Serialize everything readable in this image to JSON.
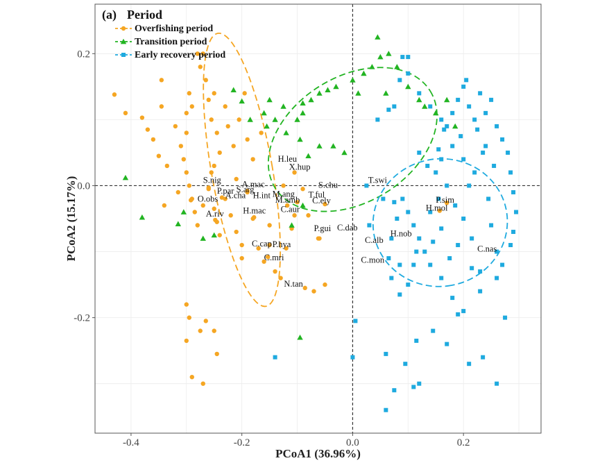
{
  "chart_data": {
    "type": "scatter",
    "panel_tag": "(a)",
    "title": "",
    "xlabel": "PCoA1 (36.96%)",
    "ylabel": "PCoA2 (15.17%)",
    "xlim": [
      -0.465,
      0.34
    ],
    "ylim": [
      -0.375,
      0.275
    ],
    "xticks": [
      -0.4,
      -0.2,
      0.0,
      0.2
    ],
    "xtick_labels": [
      "-0.4",
      "-0.2",
      "0.0",
      "0.2"
    ],
    "yticks": [
      -0.2,
      0.0,
      0.2
    ],
    "ytick_labels": [
      "-0.2",
      "0.0",
      "0.2"
    ],
    "grid": true,
    "zero_lines": true,
    "legend": {
      "title": "Period",
      "position": "top-left",
      "entries": [
        "Overfishing period",
        "Transition  period",
        "Early recovery period"
      ]
    },
    "series": [
      {
        "name": "Overfishing period",
        "marker": "circle",
        "color": "#F5A623",
        "ellipse": {
          "cx": -0.2,
          "cy": 0.024,
          "rx": 0.11,
          "ry": 0.21,
          "angle": 10
        },
        "points": [
          [
            -0.43,
            0.138
          ],
          [
            -0.41,
            0.11
          ],
          [
            -0.38,
            0.103
          ],
          [
            -0.37,
            0.085
          ],
          [
            -0.345,
            0.16
          ],
          [
            -0.345,
            0.12
          ],
          [
            -0.335,
            0.03
          ],
          [
            -0.32,
            0.09
          ],
          [
            -0.3,
            0.11
          ],
          [
            -0.3,
            0.08
          ],
          [
            -0.295,
            0.14
          ],
          [
            -0.29,
            0.12
          ],
          [
            -0.28,
            0.2
          ],
          [
            -0.275,
            0.18
          ],
          [
            -0.27,
            0.2
          ],
          [
            -0.265,
            0.16
          ],
          [
            -0.26,
            0.13
          ],
          [
            -0.255,
            0.1
          ],
          [
            -0.25,
            0.14
          ],
          [
            -0.25,
            0.03
          ],
          [
            -0.245,
            0.08
          ],
          [
            -0.24,
            0.05
          ],
          [
            -0.23,
            0.12
          ],
          [
            -0.225,
            0.09
          ],
          [
            -0.215,
            0.06
          ],
          [
            -0.205,
            0.1
          ],
          [
            -0.195,
            0.14
          ],
          [
            -0.19,
            0.07
          ],
          [
            -0.18,
            0.04
          ],
          [
            -0.165,
            0.08
          ],
          [
            -0.31,
            0.06
          ],
          [
            -0.305,
            0.04
          ],
          [
            -0.3,
            0.02
          ],
          [
            -0.295,
            0.0
          ],
          [
            -0.29,
            -0.02
          ],
          [
            -0.285,
            -0.04
          ],
          [
            -0.28,
            -0.06
          ],
          [
            -0.27,
            -0.03
          ],
          [
            -0.26,
            -0.005
          ],
          [
            -0.255,
            0.02
          ],
          [
            -0.25,
            -0.035
          ],
          [
            -0.245,
            -0.055
          ],
          [
            -0.24,
            -0.075
          ],
          [
            -0.23,
            -0.02
          ],
          [
            -0.22,
            -0.045
          ],
          [
            -0.21,
            -0.07
          ],
          [
            -0.2,
            -0.09
          ],
          [
            -0.19,
            -0.01
          ],
          [
            -0.18,
            -0.05
          ],
          [
            -0.17,
            -0.095
          ],
          [
            -0.16,
            -0.115
          ],
          [
            -0.15,
            -0.09
          ],
          [
            -0.14,
            -0.13
          ],
          [
            -0.13,
            -0.14
          ],
          [
            -0.12,
            -0.095
          ],
          [
            -0.11,
            -0.065
          ],
          [
            -0.1,
            -0.025
          ],
          [
            -0.09,
            -0.005
          ],
          [
            -0.08,
            -0.045
          ],
          [
            -0.07,
            -0.16
          ],
          [
            -0.06,
            -0.08
          ],
          [
            -0.05,
            -0.15
          ],
          [
            -0.3,
            -0.18
          ],
          [
            -0.295,
            -0.2
          ],
          [
            -0.3,
            -0.235
          ],
          [
            -0.275,
            -0.22
          ],
          [
            -0.265,
            -0.205
          ],
          [
            -0.25,
            -0.22
          ],
          [
            -0.29,
            -0.29
          ],
          [
            -0.245,
            -0.255
          ],
          [
            -0.27,
            -0.3
          ],
          [
            -0.35,
            0.045
          ],
          [
            -0.36,
            0.07
          ],
          [
            -0.2,
            -0.11
          ],
          [
            -0.15,
            -0.06
          ],
          [
            -0.34,
            -0.03
          ],
          [
            -0.315,
            -0.01
          ],
          [
            -0.21,
            0.01
          ],
          [
            -0.125,
            0.0
          ],
          [
            -0.105,
            0.02
          ]
        ]
      },
      {
        "name": "Transition  period",
        "marker": "triangle",
        "color": "#22B422",
        "ellipse": {
          "cx": 0.0,
          "cy": 0.07,
          "rx": 0.33,
          "ry": 0.095,
          "angle": 32
        },
        "points": [
          [
            -0.41,
            0.012
          ],
          [
            -0.38,
            -0.048
          ],
          [
            -0.315,
            -0.058
          ],
          [
            -0.305,
            -0.04
          ],
          [
            -0.27,
            -0.08
          ],
          [
            -0.25,
            -0.075
          ],
          [
            -0.215,
            0.145
          ],
          [
            -0.2,
            0.128
          ],
          [
            -0.185,
            0.1
          ],
          [
            -0.16,
            0.11
          ],
          [
            -0.155,
            0.09
          ],
          [
            -0.15,
            0.13
          ],
          [
            -0.14,
            0.1
          ],
          [
            -0.125,
            0.12
          ],
          [
            -0.12,
            0.08
          ],
          [
            -0.1,
            0.1
          ],
          [
            -0.095,
            0.07
          ],
          [
            -0.09,
            0.11
          ],
          [
            -0.09,
            0.125
          ],
          [
            -0.075,
            0.13
          ],
          [
            -0.06,
            0.14
          ],
          [
            -0.045,
            0.145
          ],
          [
            -0.035,
            0.06
          ],
          [
            -0.03,
            0.15
          ],
          [
            -0.015,
            0.05
          ],
          [
            0.0,
            0.16
          ],
          [
            0.01,
            0.14
          ],
          [
            0.02,
            0.17
          ],
          [
            0.035,
            0.18
          ],
          [
            0.045,
            0.225
          ],
          [
            0.05,
            0.195
          ],
          [
            0.06,
            0.14
          ],
          [
            0.065,
            0.2
          ],
          [
            0.08,
            0.18
          ],
          [
            0.1,
            0.15
          ],
          [
            0.12,
            0.13
          ],
          [
            0.13,
            0.12
          ],
          [
            0.15,
            0.11
          ],
          [
            0.17,
            0.13
          ],
          [
            0.185,
            0.09
          ],
          [
            -0.11,
            -0.06
          ],
          [
            -0.09,
            -0.03
          ],
          [
            -0.095,
            -0.23
          ],
          [
            -0.08,
            0.045
          ],
          [
            -0.06,
            0.06
          ]
        ]
      },
      {
        "name": "Early recovery period",
        "marker": "square",
        "color": "#1EAADF",
        "ellipse": {
          "cx": 0.158,
          "cy": -0.056,
          "rx": 0.23,
          "ry": 0.102,
          "angle": -80
        },
        "points": [
          [
            0.09,
            0.195
          ],
          [
            0.1,
            0.17
          ],
          [
            0.085,
            0.16
          ],
          [
            0.075,
            0.12
          ],
          [
            0.065,
            0.115
          ],
          [
            0.045,
            0.1
          ],
          [
            0.12,
            0.14
          ],
          [
            0.14,
            0.12
          ],
          [
            0.16,
            0.1
          ],
          [
            0.17,
            0.09
          ],
          [
            0.18,
            0.11
          ],
          [
            0.19,
            0.13
          ],
          [
            0.2,
            0.15
          ],
          [
            0.21,
            0.12
          ],
          [
            0.22,
            0.1
          ],
          [
            0.23,
            0.14
          ],
          [
            0.24,
            0.11
          ],
          [
            0.25,
            0.13
          ],
          [
            0.26,
            0.09
          ],
          [
            0.27,
            0.07
          ],
          [
            0.28,
            0.05
          ],
          [
            0.285,
            0.02
          ],
          [
            0.29,
            -0.01
          ],
          [
            0.295,
            -0.04
          ],
          [
            0.29,
            -0.07
          ],
          [
            0.285,
            -0.09
          ],
          [
            0.27,
            -0.12
          ],
          [
            0.26,
            -0.14
          ],
          [
            0.23,
            -0.16
          ],
          [
            0.2,
            -0.19
          ],
          [
            0.18,
            -0.17
          ],
          [
            0.16,
            -0.14
          ],
          [
            0.14,
            -0.12
          ],
          [
            0.13,
            -0.1
          ],
          [
            0.12,
            -0.08
          ],
          [
            0.11,
            -0.06
          ],
          [
            0.1,
            -0.04
          ],
          [
            0.09,
            -0.02
          ],
          [
            0.08,
            -0.05
          ],
          [
            0.07,
            -0.08
          ],
          [
            0.065,
            -0.11
          ],
          [
            0.07,
            -0.14
          ],
          [
            0.085,
            -0.12
          ],
          [
            0.1,
            -0.15
          ],
          [
            0.115,
            -0.1
          ],
          [
            0.14,
            -0.04
          ],
          [
            0.155,
            -0.02
          ],
          [
            0.17,
            0.0
          ],
          [
            0.185,
            -0.03
          ],
          [
            0.2,
            -0.05
          ],
          [
            0.215,
            -0.08
          ],
          [
            0.22,
            0.02
          ],
          [
            0.235,
            0.05
          ],
          [
            0.245,
            -0.02
          ],
          [
            0.25,
            -0.06
          ],
          [
            0.16,
            0.04
          ],
          [
            0.15,
            0.02
          ],
          [
            0.135,
            0.03
          ],
          [
            0.12,
            0.05
          ],
          [
            0.18,
            0.06
          ],
          [
            0.2,
            0.04
          ],
          [
            0.21,
            0.0
          ],
          [
            0.195,
            0.075
          ],
          [
            0.225,
            0.085
          ],
          [
            0.24,
            0.06
          ],
          [
            0.255,
            0.03
          ],
          [
            0.19,
            -0.09
          ],
          [
            0.175,
            -0.11
          ],
          [
            0.16,
            -0.065
          ],
          [
            0.145,
            -0.085
          ],
          [
            0.005,
            -0.205
          ],
          [
            0.0,
            -0.26
          ],
          [
            0.06,
            -0.255
          ],
          [
            0.06,
            -0.34
          ],
          [
            0.075,
            -0.31
          ],
          [
            0.095,
            -0.27
          ],
          [
            0.11,
            -0.305
          ],
          [
            0.12,
            -0.3
          ],
          [
            0.115,
            -0.235
          ],
          [
            0.145,
            -0.22
          ],
          [
            0.17,
            -0.24
          ],
          [
            0.21,
            -0.27
          ],
          [
            0.235,
            -0.26
          ],
          [
            0.26,
            -0.3
          ],
          [
            0.275,
            -0.2
          ],
          [
            -0.14,
            -0.26
          ],
          [
            0.03,
            -0.06
          ],
          [
            0.055,
            -0.02
          ],
          [
            0.025,
            0.0
          ],
          [
            0.215,
            -0.125
          ],
          [
            0.1,
            0.195
          ],
          [
            0.205,
            0.16
          ],
          [
            0.165,
            0.085
          ],
          [
            0.155,
            0.055
          ],
          [
            0.26,
            -0.1
          ],
          [
            0.23,
            -0.13
          ],
          [
            0.19,
            -0.195
          ],
          [
            0.075,
            -0.025
          ],
          [
            0.085,
            -0.165
          ],
          [
            0.11,
            -0.12
          ]
        ]
      }
    ],
    "species_labels": [
      {
        "text": "H.leu",
        "x": -0.135,
        "y": 0.036,
        "dot": null
      },
      {
        "text": "X.hup",
        "x": -0.115,
        "y": 0.024,
        "dot": null
      },
      {
        "text": "S.nig",
        "x": -0.27,
        "y": 0.004,
        "dot": [
          -0.26,
          -0.003
        ]
      },
      {
        "text": "A.mac",
        "x": -0.2,
        "y": -0.002,
        "dot": [
          -0.19,
          -0.008
        ]
      },
      {
        "text": "P.par",
        "x": -0.245,
        "y": -0.012,
        "dot": [
          -0.236,
          -0.018
        ]
      },
      {
        "text": "S.arg",
        "x": -0.21,
        "y": -0.01,
        "dot": null
      },
      {
        "text": "M.ang",
        "x": -0.145,
        "y": -0.017,
        "dot": null
      },
      {
        "text": "H.int",
        "x": -0.18,
        "y": -0.019,
        "dot": null
      },
      {
        "text": "A.cha",
        "x": -0.23,
        "y": -0.019,
        "dot": null
      },
      {
        "text": "M.amb",
        "x": -0.14,
        "y": -0.026,
        "dot": [
          -0.118,
          -0.03
        ]
      },
      {
        "text": "S.chu",
        "x": -0.062,
        "y": -0.003,
        "dot": null
      },
      {
        "text": "T.swi",
        "x": 0.028,
        "y": 0.004,
        "dot": null
      },
      {
        "text": "T.ful",
        "x": -0.08,
        "y": -0.018,
        "dot": null
      },
      {
        "text": "C.ely",
        "x": -0.073,
        "y": -0.027,
        "dot": [
          -0.05,
          -0.028
        ]
      },
      {
        "text": "O.obs",
        "x": -0.28,
        "y": -0.024,
        "dot": [
          -0.292,
          -0.022
        ]
      },
      {
        "text": "H.mac",
        "x": -0.198,
        "y": -0.042,
        "dot": [
          -0.178,
          -0.048
        ]
      },
      {
        "text": "C.aur",
        "x": -0.13,
        "y": -0.04,
        "dot": [
          -0.105,
          -0.045
        ]
      },
      {
        "text": "A.riv",
        "x": -0.265,
        "y": -0.047,
        "dot": [
          -0.248,
          -0.052
        ]
      },
      {
        "text": "P.sim",
        "x": 0.15,
        "y": -0.026,
        "dot": [
          0.17,
          -0.026
        ]
      },
      {
        "text": "H.mol",
        "x": 0.132,
        "y": -0.038,
        "dot": [
          0.157,
          -0.038
        ]
      },
      {
        "text": "P.gui",
        "x": -0.07,
        "y": -0.069,
        "dot": [
          -0.062,
          -0.08
        ]
      },
      {
        "text": "C.dab",
        "x": -0.028,
        "y": -0.068,
        "dot": null
      },
      {
        "text": "H.nob",
        "x": 0.068,
        "y": -0.077,
        "dot": null
      },
      {
        "text": "C.alb",
        "x": 0.022,
        "y": -0.087,
        "dot": null
      },
      {
        "text": "C.cap",
        "x": -0.182,
        "y": -0.092,
        "dot": null
      },
      {
        "text": "P.hya",
        "x": -0.145,
        "y": -0.093,
        "dot": null
      },
      {
        "text": "C.nas",
        "x": 0.225,
        "y": -0.1,
        "dot": null
      },
      {
        "text": "C.mri",
        "x": -0.16,
        "y": -0.113,
        "dot": [
          -0.153,
          -0.108
        ]
      },
      {
        "text": "C.mon",
        "x": 0.015,
        "y": -0.117,
        "dot": null
      },
      {
        "text": "N.tan",
        "x": -0.124,
        "y": -0.153,
        "dot": [
          -0.086,
          -0.155
        ]
      }
    ]
  }
}
